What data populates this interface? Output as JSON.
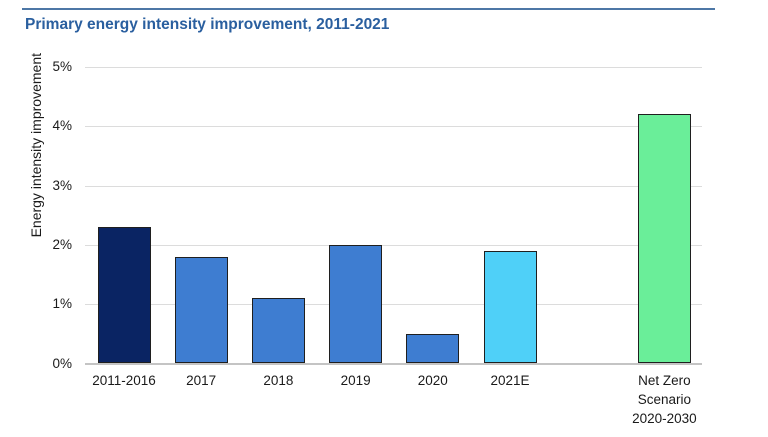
{
  "page": {
    "title": "Primary energy intensity improvement, 2011-2021"
  },
  "colors": {
    "title_text": "#2a5f9f",
    "top_rule": "#4d77a6",
    "gridline": "#dcdcdc",
    "axis_baseline": "#c4c4c4",
    "bar_border": "#1f1f1f",
    "axis_text": "#1a1a1a",
    "bar_navy": "#0a2463",
    "bar_blue": "#3e7dd1",
    "bar_cyan": "#4fd0f8",
    "bar_green": "#6aee99"
  },
  "chart_data": {
    "type": "bar",
    "title": "Primary energy intensity improvement, 2011-2021",
    "xlabel": "",
    "ylabel": "Energy intensity improvement",
    "unit": "%",
    "categories": [
      "2011-2016",
      "2017",
      "2018",
      "2019",
      "2020",
      "2021E",
      "Net Zero\nScenario\n2020-2030"
    ],
    "values": [
      2.3,
      1.8,
      1.1,
      2.0,
      0.5,
      1.9,
      4.2
    ],
    "bar_colors": [
      "#0a2463",
      "#3e7dd1",
      "#3e7dd1",
      "#3e7dd1",
      "#3e7dd1",
      "#4fd0f8",
      "#6aee99"
    ],
    "slots": [
      0,
      1,
      2,
      3,
      4,
      5,
      7
    ],
    "ylim": [
      0,
      5
    ],
    "yticks": [
      {
        "value": 0,
        "label": "0%"
      },
      {
        "value": 1,
        "label": "1%"
      },
      {
        "value": 2,
        "label": "2%"
      },
      {
        "value": 3,
        "label": "3%"
      },
      {
        "value": 4,
        "label": "4%"
      },
      {
        "value": 5,
        "label": "5%"
      }
    ],
    "grid": true,
    "legend": false
  }
}
